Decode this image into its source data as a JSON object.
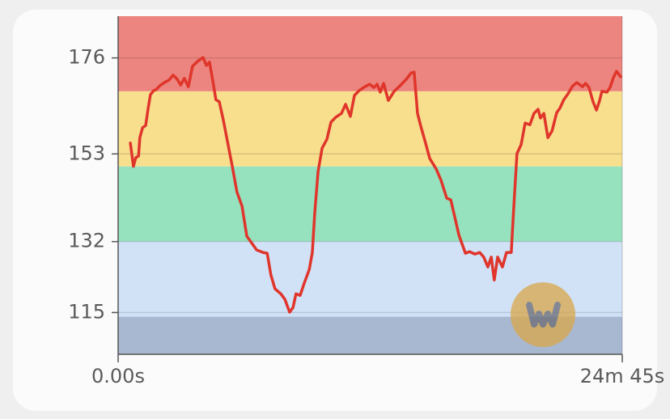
{
  "chart_data": {
    "type": "line",
    "xlim": [
      0,
      1485
    ],
    "xticks": [
      {
        "value": 0,
        "label": "0.00s"
      },
      {
        "value": 1485,
        "label": "24m 45s"
      }
    ],
    "ylim": [
      105,
      186
    ],
    "yticks": [
      115,
      132,
      153,
      176
    ],
    "grid": true,
    "zones": [
      {
        "from": 168,
        "to": 186,
        "color": "#ec8580"
      },
      {
        "from": 150,
        "to": 168,
        "color": "#f7df8e"
      },
      {
        "from": 132,
        "to": 150,
        "color": "#96e2bf"
      },
      {
        "from": 114,
        "to": 132,
        "color": "#d1e2f7"
      },
      {
        "from": 105,
        "to": 114,
        "color": "#a8b8d0"
      }
    ],
    "x": [
      36,
      45,
      52,
      60,
      64,
      72,
      81,
      88,
      95,
      105,
      112,
      122,
      136,
      150,
      162,
      174,
      184,
      195,
      207,
      219,
      236,
      250,
      260,
      269,
      279,
      288,
      298,
      310,
      322,
      336,
      350,
      365,
      379,
      393,
      408,
      427,
      439,
      450,
      462,
      479,
      491,
      505,
      515,
      524,
      536,
      548,
      563,
      572,
      579,
      589,
      601,
      615,
      627,
      641,
      658,
      670,
      684,
      696,
      710,
      727,
      741,
      753,
      763,
      772,
      782,
      796,
      813,
      830,
      849,
      863,
      872,
      882,
      891,
      903,
      918,
      937,
      951,
      968,
      980,
      987,
      1004,
      1023,
      1035,
      1051,
      1065,
      1077,
      1089,
      1099,
      1108,
      1118,
      1132,
      1144,
      1158,
      1168,
      1175,
      1187,
      1199,
      1213,
      1225,
      1237,
      1244,
      1254,
      1266,
      1278,
      1292,
      1301,
      1313,
      1325,
      1339,
      1351,
      1368,
      1377,
      1387,
      1399,
      1409,
      1418,
      1425,
      1440,
      1449,
      1459,
      1468,
      1480
    ],
    "series": [
      {
        "color": "#e0352b",
        "values": [
          155.6,
          150,
          152.1,
          152.5,
          156.9,
          159.3,
          159.8,
          163.7,
          167.2,
          168.2,
          168.4,
          169.3,
          170.1,
          170.7,
          171.9,
          170.9,
          169.5,
          171.1,
          169.1,
          174,
          175.3,
          176.1,
          174.2,
          175,
          170.5,
          166,
          165.5,
          161,
          156,
          150.1,
          143.9,
          140.5,
          133.3,
          131.7,
          130,
          129.4,
          129.2,
          124,
          120.7,
          119.5,
          118.2,
          115.1,
          116.2,
          119.5,
          119.1,
          122,
          125.3,
          129.4,
          138.7,
          148.8,
          154.4,
          156.5,
          160.6,
          161.8,
          162.7,
          164.9,
          162,
          167,
          168.2,
          169.1,
          169.7,
          168.9,
          169.7,
          167.8,
          169.9,
          165.8,
          168,
          169.3,
          170.9,
          172.4,
          172.6,
          162.7,
          159.8,
          156.4,
          151.9,
          149.4,
          146.7,
          142.4,
          142,
          139.5,
          133.5,
          129.2,
          129.6,
          129,
          129.4,
          128.3,
          125.9,
          128.3,
          122.8,
          128.3,
          125.9,
          129.4,
          129.4,
          143.8,
          153.1,
          155.2,
          160.4,
          160,
          162.7,
          163.7,
          161.6,
          162.7,
          156.9,
          158.5,
          162.9,
          163.9,
          166,
          167.4,
          169.3,
          170.1,
          169.1,
          169.9,
          168.9,
          165.5,
          163.5,
          165.7,
          168,
          167.8,
          168.9,
          171.3,
          172.8,
          171.5
        ]
      }
    ]
  }
}
